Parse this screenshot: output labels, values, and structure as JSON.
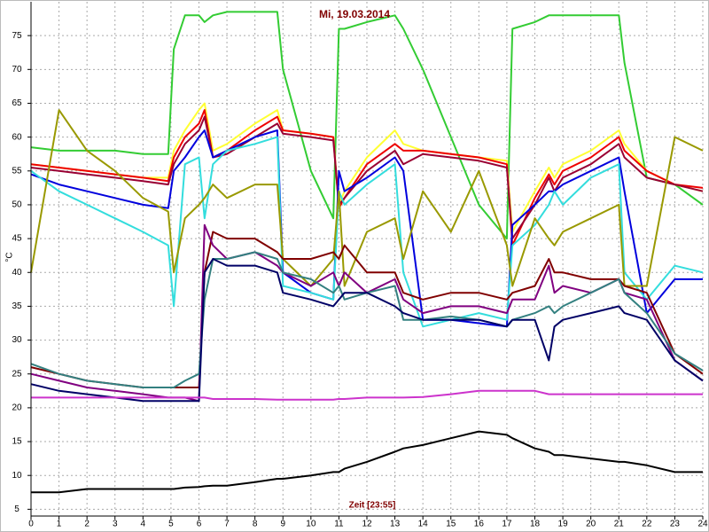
{
  "chart_data": {
    "type": "line",
    "title": "Mi, 19.03.2014",
    "xlabel": "Zeit [23:55]",
    "ylabel": "°C",
    "x": [
      0,
      1,
      2,
      3,
      4,
      4.9,
      5.1,
      5.5,
      6,
      6.2,
      6.5,
      7,
      8,
      8.8,
      9,
      10,
      10.8,
      11,
      11.2,
      12,
      13,
      13.3,
      14,
      15,
      16,
      17,
      17.2,
      18,
      18.5,
      18.7,
      19,
      20,
      21,
      21.2,
      22,
      23,
      24
    ],
    "xlim": [
      0,
      24
    ],
    "xticks": [
      0,
      1,
      2,
      3,
      4,
      5,
      6,
      7,
      8,
      9,
      10,
      11,
      12,
      13,
      14,
      15,
      16,
      17,
      18,
      19,
      20,
      21,
      22,
      23,
      24
    ],
    "ylim": [
      4,
      80
    ],
    "yticks": [
      5,
      10,
      15,
      20,
      25,
      30,
      35,
      40,
      45,
      50,
      55,
      60,
      65,
      70,
      75
    ],
    "grid": true,
    "series": [
      {
        "color": "#33cc33",
        "values": [
          58.5,
          58,
          58,
          58,
          57.5,
          57.5,
          73,
          78,
          78,
          77,
          78,
          78.5,
          78.5,
          78.5,
          70,
          55,
          48,
          76,
          76,
          77,
          78,
          76,
          70,
          60,
          50,
          45,
          76,
          77,
          78,
          78,
          78,
          78,
          78,
          71,
          54,
          53,
          50
        ]
      },
      {
        "color": "#ffff33",
        "values": [
          56,
          55.5,
          55,
          54.5,
          54,
          54,
          58,
          61,
          64,
          65,
          58,
          59,
          62,
          64,
          61,
          60.5,
          60,
          50,
          52,
          57,
          61,
          59,
          58,
          57.5,
          57,
          56.5,
          46,
          52,
          55.5,
          54,
          56,
          58,
          61,
          59,
          55,
          53,
          52
        ]
      },
      {
        "color": "#ee0000",
        "values": [
          56,
          55.5,
          55,
          54.5,
          54,
          53.5,
          57,
          60,
          62,
          64,
          57,
          58,
          61,
          63,
          61,
          60.5,
          60,
          49.5,
          51,
          56,
          59,
          58,
          58,
          57.5,
          57,
          56,
          44,
          51,
          54.5,
          53,
          55,
          57,
          60,
          58,
          55,
          53,
          52.5
        ]
      },
      {
        "color": "#990033",
        "values": [
          55.5,
          55,
          54.5,
          54,
          53.5,
          53,
          56,
          59,
          61,
          63,
          57,
          57.5,
          60,
          62,
          60.5,
          60,
          59.5,
          50,
          51,
          55,
          58,
          56,
          57.5,
          57,
          56.5,
          55.5,
          45,
          50,
          54,
          52,
          54,
          56,
          59,
          57,
          54,
          53,
          52
        ]
      },
      {
        "color": "#0000dd",
        "values": [
          54.5,
          53,
          52,
          51,
          50,
          49.5,
          55,
          57,
          60,
          61,
          57,
          58,
          60,
          61,
          40,
          37,
          36,
          55,
          52,
          54,
          57,
          55,
          33,
          33,
          32.5,
          32,
          47,
          50,
          52,
          52,
          53,
          55,
          57,
          52,
          34,
          39,
          39
        ]
      },
      {
        "color": "#33dddd",
        "values": [
          55,
          52,
          50,
          48,
          46,
          44,
          35,
          56,
          57,
          48,
          56,
          58,
          59,
          60,
          38,
          37,
          36,
          52,
          50,
          53,
          56,
          40,
          32,
          33,
          34,
          33,
          44,
          47,
          50,
          52,
          50,
          54,
          56,
          40,
          36,
          41,
          40
        ]
      },
      {
        "color": "#999900",
        "values": [
          40,
          64,
          58,
          55,
          51,
          49,
          40,
          48,
          50,
          51,
          53,
          51,
          53,
          53,
          42,
          38,
          42,
          52,
          38,
          46,
          48,
          42,
          52,
          46,
          55,
          44,
          38,
          48,
          45,
          44,
          46,
          48,
          50,
          38,
          38,
          60,
          58
        ]
      },
      {
        "color": "#800000",
        "values": [
          26,
          25,
          24,
          23.5,
          23,
          23,
          23,
          23,
          23,
          40,
          46,
          45,
          45,
          43,
          42,
          42,
          43,
          42,
          44,
          40,
          40,
          37,
          36,
          37,
          37,
          36,
          37,
          38,
          42,
          40,
          40,
          39,
          39,
          38,
          37,
          28,
          25
        ]
      },
      {
        "color": "#800080",
        "values": [
          25,
          24,
          23,
          22.5,
          22,
          21.5,
          21.5,
          21.5,
          21,
          47,
          44,
          42,
          43,
          41,
          40,
          38,
          40,
          38,
          40,
          37,
          39,
          36,
          34,
          35,
          35,
          34,
          36,
          36,
          41,
          37,
          38,
          37,
          39,
          37,
          36,
          27,
          24
        ]
      },
      {
        "color": "#338080",
        "values": [
          26.5,
          25,
          24,
          23.5,
          23,
          23,
          23,
          24,
          25,
          36,
          42,
          42,
          43,
          42,
          40,
          39,
          37,
          38,
          36,
          37,
          38,
          33,
          33,
          33.5,
          33,
          32,
          33,
          34,
          35,
          34,
          35,
          37,
          39,
          37,
          34,
          28,
          25.5
        ]
      },
      {
        "color": "#000066",
        "values": [
          23.5,
          22.5,
          22,
          21.5,
          21,
          21,
          21,
          21,
          21,
          40,
          42,
          41,
          41,
          40,
          37,
          36,
          35,
          36,
          37,
          37,
          35,
          34,
          33,
          33,
          33,
          32,
          33,
          33,
          27,
          32,
          33,
          34,
          35,
          34,
          33,
          27,
          24
        ]
      },
      {
        "color": "#cc33cc",
        "values": [
          21.5,
          21.5,
          21.5,
          21.5,
          21.5,
          21.5,
          21.5,
          21.5,
          21.5,
          21.5,
          21.3,
          21.3,
          21.3,
          21.2,
          21.2,
          21.2,
          21.2,
          21.3,
          21.3,
          21.5,
          21.5,
          21.5,
          21.6,
          22,
          22.5,
          22.5,
          22.5,
          22.5,
          22,
          22,
          22,
          22,
          22,
          22,
          22,
          22,
          22
        ]
      },
      {
        "color": "#000000",
        "values": [
          7.5,
          7.5,
          8,
          8,
          8,
          8,
          8,
          8.2,
          8.3,
          8.4,
          8.5,
          8.5,
          9,
          9.5,
          9.5,
          10,
          10.5,
          10.5,
          11,
          12,
          13.5,
          14,
          14.5,
          15.5,
          16.5,
          16,
          15.5,
          14,
          13.5,
          13,
          13,
          12.5,
          12,
          12,
          11.5,
          10.5,
          10.5
        ]
      }
    ]
  }
}
